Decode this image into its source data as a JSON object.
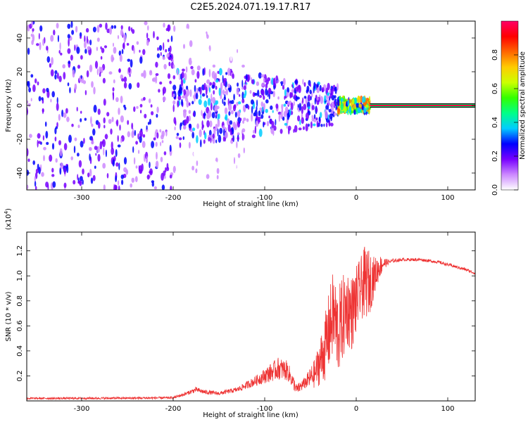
{
  "title": "C2E5.2024.071.19.17.R17",
  "chart_data": [
    {
      "type": "heatmap",
      "xlabel": "Height of straight line (km)",
      "ylabel": "Frequency (Hz)",
      "xlim": [
        -360,
        130
      ],
      "ylim": [
        -50,
        50
      ],
      "xticks": [
        -300,
        -200,
        -100,
        0,
        100
      ],
      "yticks": [
        -40,
        -20,
        0,
        20,
        40
      ],
      "colorbar": {
        "label": "Normalized spectral amplitude",
        "range": [
          0,
          1
        ],
        "ticks": [
          "0.0",
          "0.2",
          "0.4",
          "0.6",
          "0.8"
        ],
        "colors": [
          "#ffffff",
          "#cc88ff",
          "#7700ff",
          "#0000ff",
          "#00ccff",
          "#00ff88",
          "#33ff00",
          "#ccff00",
          "#ffcc00",
          "#ff6600",
          "#ff0000",
          "#ff0066"
        ]
      },
      "carrier_line": {
        "frequency_hz": 0,
        "x_start_km": 15,
        "x_end_km": 130
      },
      "regions": [
        {
          "x_start_km": -360,
          "x_end_km": -200,
          "freq_spread_hz": 50,
          "amplitude": 0.25
        },
        {
          "x_start_km": -200,
          "x_end_km": -120,
          "freq_spread_hz": 50,
          "amplitude": 0.08
        },
        {
          "x_start_km": -200,
          "x_end_km": -20,
          "freq_spread_hz": 25,
          "amplitude": 0.3
        },
        {
          "x_start_km": -20,
          "x_end_km": 15,
          "freq_spread_hz": 4,
          "amplitude": 0.7
        }
      ]
    },
    {
      "type": "line",
      "xlabel": "Height of straight line (km)",
      "ylabel": "SNR (10 * v/v)",
      "y_multiplier": "(x10",
      "y_multiplier_exp": "4",
      "y_multiplier_close": ")",
      "xlim": [
        -360,
        130
      ],
      "ylim": [
        0,
        13500
      ],
      "xticks": [
        -300,
        -200,
        -100,
        0,
        100
      ],
      "yticks": [
        2000,
        4000,
        6000,
        8000,
        10000,
        12000
      ],
      "ytick_labels": [
        "0.2",
        "0.4",
        "0.6",
        "0.8",
        "1.0",
        "1.2"
      ],
      "series": [
        {
          "color": "#ee3333",
          "x": [
            -360,
            -250,
            -200,
            -185,
            -175,
            -165,
            -150,
            -130,
            -110,
            -95,
            -85,
            -75,
            -65,
            -55,
            -45,
            -35,
            -30,
            -25,
            -20,
            -15,
            -10,
            -5,
            0,
            5,
            10,
            15,
            20,
            25,
            30,
            35,
            40,
            50,
            60,
            70,
            80,
            90,
            100,
            110,
            120,
            130
          ],
          "y": [
            200,
            220,
            250,
            600,
            900,
            700,
            600,
            900,
            1600,
            2200,
            2600,
            2400,
            900,
            1500,
            2200,
            4000,
            5500,
            7000,
            5500,
            6500,
            7500,
            7000,
            8000,
            9000,
            9500,
            9500,
            10000,
            10700,
            11000,
            11100,
            11200,
            11300,
            11300,
            11300,
            11200,
            11100,
            10900,
            10700,
            10500,
            10200
          ],
          "noise_amp": [
            80,
            90,
            100,
            150,
            200,
            180,
            150,
            200,
            400,
            700,
            900,
            800,
            400,
            500,
            1200,
            2500,
            3200,
            3500,
            3500,
            3500,
            3200,
            3000,
            2800,
            2500,
            3000,
            2500,
            1500,
            1000,
            500,
            200,
            150,
            120,
            120,
            120,
            120,
            120,
            120,
            120,
            120,
            120
          ]
        }
      ]
    }
  ]
}
